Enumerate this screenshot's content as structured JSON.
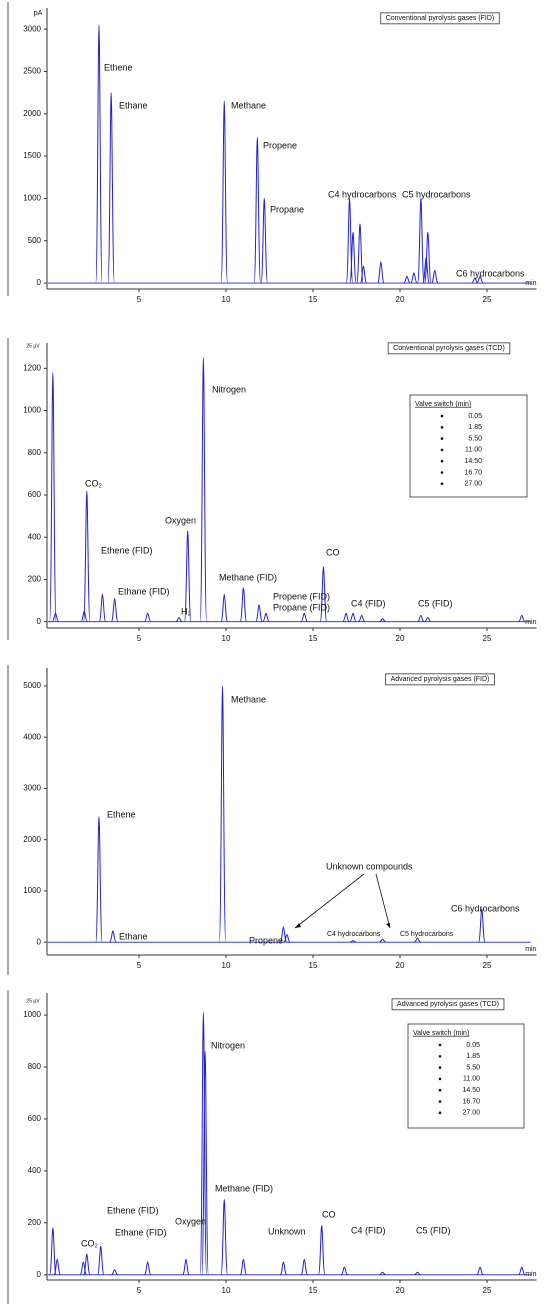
{
  "chart_data": [
    {
      "type": "chromatogram",
      "title": "Conventional pyrolysis gases (FID)",
      "y_unit": "pA",
      "x_unit": "min",
      "color": "#2222cc",
      "xlim": [
        0,
        27.5
      ],
      "xticks": [
        5,
        10,
        15,
        20,
        25
      ],
      "ylim": [
        -70,
        3250
      ],
      "yticks": [
        0,
        500,
        1000,
        1500,
        2000,
        2500,
        3000
      ],
      "x": [
        2.7,
        3.4,
        9.9,
        11.8,
        12.2,
        17.1,
        17.3,
        17.7,
        17.9,
        18.9,
        20.4,
        20.8,
        21.2,
        21.5,
        21.6,
        22.0,
        24.3,
        24.6
      ],
      "values": [
        3050,
        2250,
        2150,
        1720,
        1000,
        1000,
        600,
        700,
        200,
        250,
        80,
        120,
        1000,
        300,
        600,
        150,
        60,
        80
      ],
      "annotations": [
        "Ethene",
        "Ethane",
        "Methane",
        "Propene",
        "Propane",
        "C4 hydrocarbons",
        "C5 hydrocarbons",
        "C6 hydrocarbons"
      ]
    },
    {
      "type": "chromatogram",
      "title": "Conventional pyrolysis gases (TCD)",
      "y_unit": "25 µV",
      "x_unit": "min",
      "color": "#2222cc",
      "xlim": [
        0,
        27.5
      ],
      "xticks": [
        5,
        10,
        15,
        20,
        25
      ],
      "ylim": [
        -30,
        1320
      ],
      "yticks": [
        0,
        200,
        400,
        600,
        800,
        1000,
        1200
      ],
      "x": [
        0.05,
        0.2,
        1.85,
        2.0,
        2.9,
        3.6,
        5.5,
        7.3,
        7.8,
        8.7,
        9.9,
        11.0,
        11.9,
        12.3,
        14.5,
        15.6,
        16.9,
        17.3,
        17.8,
        19.0,
        21.2,
        21.6,
        27.0
      ],
      "values": [
        1180,
        40,
        50,
        620,
        130,
        110,
        40,
        20,
        430,
        1250,
        130,
        160,
        80,
        40,
        40,
        260,
        40,
        40,
        30,
        15,
        30,
        20,
        30
      ],
      "annotations": [
        "CO₂",
        "Oxygen",
        "Nitrogen",
        "Ethene (FID)",
        "Ethane (FID)",
        "H₂",
        "Methane (FID)",
        "Propene (FID)",
        "Propane (FID)",
        "CO",
        "C4 (FID)",
        "C5 (FID)"
      ],
      "valve_switch": {
        "title": "Valve switch (min)",
        "items": [
          "0.05",
          "1.85",
          "5.50",
          "11.00",
          "14.50",
          "16.70",
          "27.00"
        ]
      }
    },
    {
      "type": "chromatogram",
      "title": "Advanced pyrolysis gases (FID)",
      "x_unit": "min",
      "color": "#2222cc",
      "xlim": [
        0,
        27.5
      ],
      "xticks": [
        5,
        10,
        15,
        20,
        25
      ],
      "ylim": [
        -250,
        5350
      ],
      "yticks": [
        0,
        1000,
        2000,
        3000,
        4000,
        5000
      ],
      "x": [
        2.7,
        3.5,
        9.8,
        13.3,
        13.5,
        17.3,
        19.0,
        21.0,
        24.7
      ],
      "values": [
        2450,
        220,
        5000,
        300,
        150,
        30,
        60,
        80,
        650
      ],
      "annotations": [
        "Methane",
        "Ethene",
        "Ethane",
        "Propene",
        "Unknown compounds",
        "C4 hydrocarbons",
        "C5 hydrocarbons",
        "C6 hydrocarbons"
      ]
    },
    {
      "type": "chromatogram",
      "title": "Advanced pyrolysis gases (TCD)",
      "y_unit": "25 µV",
      "x_unit": "min",
      "color": "#2222cc",
      "xlim": [
        0,
        27.5
      ],
      "xticks": [
        5,
        10,
        15,
        20,
        25
      ],
      "ylim": [
        -20,
        1085
      ],
      "yticks": [
        0,
        200,
        400,
        600,
        800,
        1000
      ],
      "x": [
        0.05,
        0.3,
        1.8,
        2.0,
        2.8,
        3.6,
        5.5,
        7.7,
        8.7,
        8.8,
        9.9,
        11.0,
        13.3,
        14.5,
        15.5,
        16.8,
        19.0,
        21.0,
        24.6,
        27.0
      ],
      "values": [
        180,
        60,
        50,
        80,
        110,
        20,
        50,
        60,
        1010,
        860,
        290,
        60,
        50,
        60,
        190,
        30,
        10,
        10,
        30,
        30
      ],
      "annotations": [
        "Nitrogen",
        "Methane (FID)",
        "CO₂",
        "Ethene (FID)",
        "Ethane (FID)",
        "Oxygen",
        "Unknown",
        "CO",
        "C4 (FID)",
        "C5 (FID)"
      ],
      "valve_switch": {
        "title": "Valve switch (min)",
        "items": [
          "0.05",
          "1.85",
          "5.50",
          "11.00",
          "14.50",
          "16.70",
          "27.00"
        ]
      }
    }
  ]
}
